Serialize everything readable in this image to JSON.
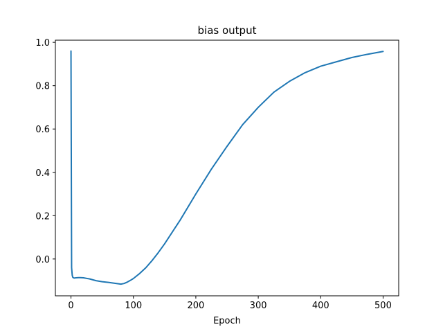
{
  "chart_data": {
    "type": "line",
    "title": "bias output",
    "xlabel": "Epoch",
    "ylabel": "",
    "xlim": [
      -25,
      525
    ],
    "ylim": [
      -0.17,
      1.01
    ],
    "x_ticks": [
      0,
      100,
      200,
      300,
      400,
      500
    ],
    "y_ticks": [
      0.0,
      0.2,
      0.4,
      0.6,
      0.8,
      1.0
    ],
    "x_tick_labels": [
      "0",
      "100",
      "200",
      "300",
      "400",
      "500"
    ],
    "y_tick_labels": [
      "0.0",
      "0.2",
      "0.4",
      "0.6",
      "0.8",
      "1.0"
    ],
    "grid": false,
    "legend": "none",
    "series": [
      {
        "color": "#1f77b4",
        "x": [
          0,
          1,
          2,
          3,
          5,
          8,
          12,
          15,
          20,
          30,
          40,
          50,
          60,
          70,
          80,
          85,
          90,
          95,
          100,
          110,
          120,
          130,
          140,
          150,
          175,
          200,
          225,
          250,
          275,
          300,
          325,
          350,
          375,
          400,
          425,
          450,
          475,
          500
        ],
        "y": [
          0.96,
          -0.04,
          -0.075,
          -0.085,
          -0.088,
          -0.087,
          -0.086,
          -0.086,
          -0.087,
          -0.092,
          -0.1,
          -0.105,
          -0.108,
          -0.112,
          -0.116,
          -0.113,
          -0.107,
          -0.099,
          -0.09,
          -0.067,
          -0.04,
          -0.007,
          0.03,
          0.07,
          0.18,
          0.3,
          0.415,
          0.52,
          0.62,
          0.7,
          0.77,
          0.82,
          0.86,
          0.89,
          0.91,
          0.93,
          0.945,
          0.958
        ]
      }
    ]
  }
}
